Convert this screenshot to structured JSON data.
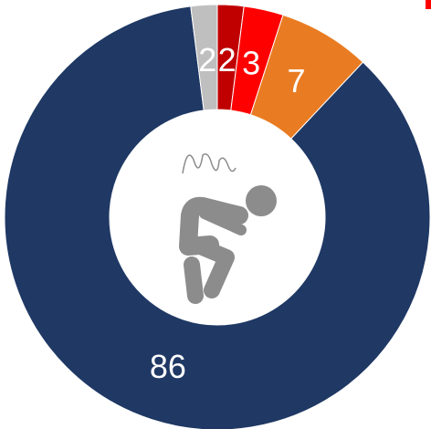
{
  "chart_data": {
    "type": "donut",
    "values": [
      2,
      3,
      7,
      86,
      2
    ],
    "colors": [
      "#c00000",
      "#ff0000",
      "#e97c22",
      "#1f3864",
      "#bfbfbf"
    ]
  }
}
